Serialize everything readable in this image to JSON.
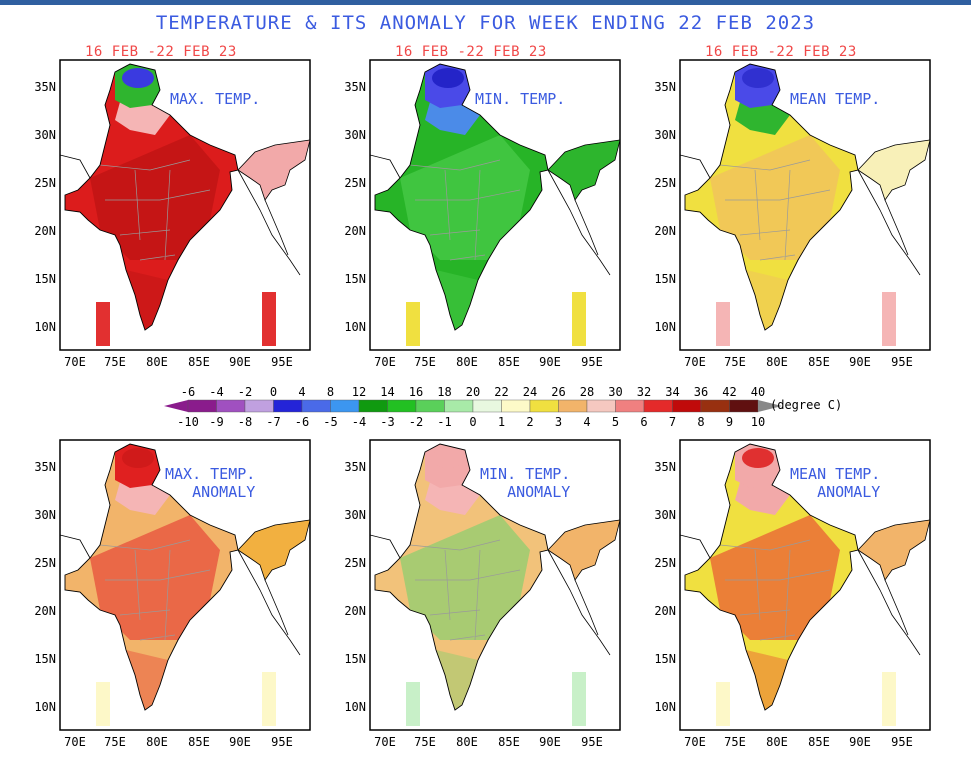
{
  "title": "TEMPERATURE & ITS ANOMALY FOR WEEK ENDING 22 FEB 2023",
  "period_label": "16 FEB -22 FEB 23",
  "lat_labels": [
    "35N",
    "30N",
    "25N",
    "20N",
    "15N",
    "10N"
  ],
  "lon_labels": [
    "70E",
    "75E",
    "80E",
    "85E",
    "90E",
    "95E"
  ],
  "panels": [
    {
      "id": "max",
      "line1": "MAX. TEMP.",
      "line2": "",
      "fill": "#dc1c1c",
      "fill2": "#b31010",
      "north": "#2fb52f",
      "northtop": "#3a3ae0",
      "band": "#f5b5b5",
      "east": "#f2a9a9",
      "isl": "#e23030"
    },
    {
      "id": "min",
      "line1": "MIN. TEMP.",
      "line2": "",
      "fill": "#27b427",
      "fill2": "#56d456",
      "north": "#4a4ae8",
      "northtop": "#2424c8",
      "band": "#4b8be8",
      "east": "#2db52d",
      "isl": "#f0e040"
    },
    {
      "id": "mean",
      "line1": "MEAN TEMP.",
      "line2": "",
      "fill": "#f0e040",
      "fill2": "#f2b46a",
      "north": "#4a4ae8",
      "northtop": "#3030d0",
      "band": "#2fb52f",
      "east": "#f8f0b8",
      "isl": "#f5b5b5"
    },
    {
      "id": "max_anom",
      "line1": "MAX. TEMP.",
      "line2": "ANOMALY",
      "fill": "#f2b46a",
      "fill2": "#e42a2a",
      "north": "#e02020",
      "northtop": "#d01a1a",
      "band": "#f5b5b5",
      "east": "#f2b040",
      "isl": "#fdf8c8"
    },
    {
      "id": "min_anom",
      "line1": "MIN. TEMP.",
      "line2": "ANOMALY",
      "fill": "#f2c27a",
      "fill2": "#6bd46b",
      "north": "#f2a9a9",
      "northtop": "#f2a9a9",
      "band": "#f5b5b5",
      "east": "#f2b46a",
      "isl": "#c8f0c8"
    },
    {
      "id": "mean_anom",
      "line1": "MEAN TEMP.",
      "line2": "ANOMALY",
      "fill": "#f0e040",
      "fill2": "#e83030",
      "north": "#f2a9a9",
      "northtop": "#e03030",
      "band": "#f2a9a9",
      "east": "#f2b46a",
      "isl": "#fdf8c8"
    }
  ],
  "legend": {
    "temp_ticks": [
      "-6",
      "-4",
      "-2",
      "0",
      "4",
      "8",
      "12",
      "14",
      "16",
      "18",
      "20",
      "22",
      "24",
      "26",
      "28",
      "30",
      "32",
      "34",
      "36",
      "42",
      "40"
    ],
    "anom_ticks": [
      "-10",
      "-9",
      "-8",
      "-7",
      "-6",
      "-5",
      "-4",
      "-3",
      "-2",
      "-1",
      "0",
      "1",
      "2",
      "3",
      "4",
      "5",
      "6",
      "7",
      "8",
      "9",
      "10"
    ],
    "colors": [
      "#8a1c8c",
      "#a050c0",
      "#c0a0e0",
      "#2424d8",
      "#4a6ae8",
      "#3c96f0",
      "#109a10",
      "#22c022",
      "#5ad05a",
      "#a8eaa8",
      "#e8f8e0",
      "#fdfac8",
      "#f0e040",
      "#f2b46a",
      "#f5c8c0",
      "#f08080",
      "#e42a2a",
      "#c00a0a",
      "#983010",
      "#601010"
    ],
    "unit": "(degree C)"
  }
}
